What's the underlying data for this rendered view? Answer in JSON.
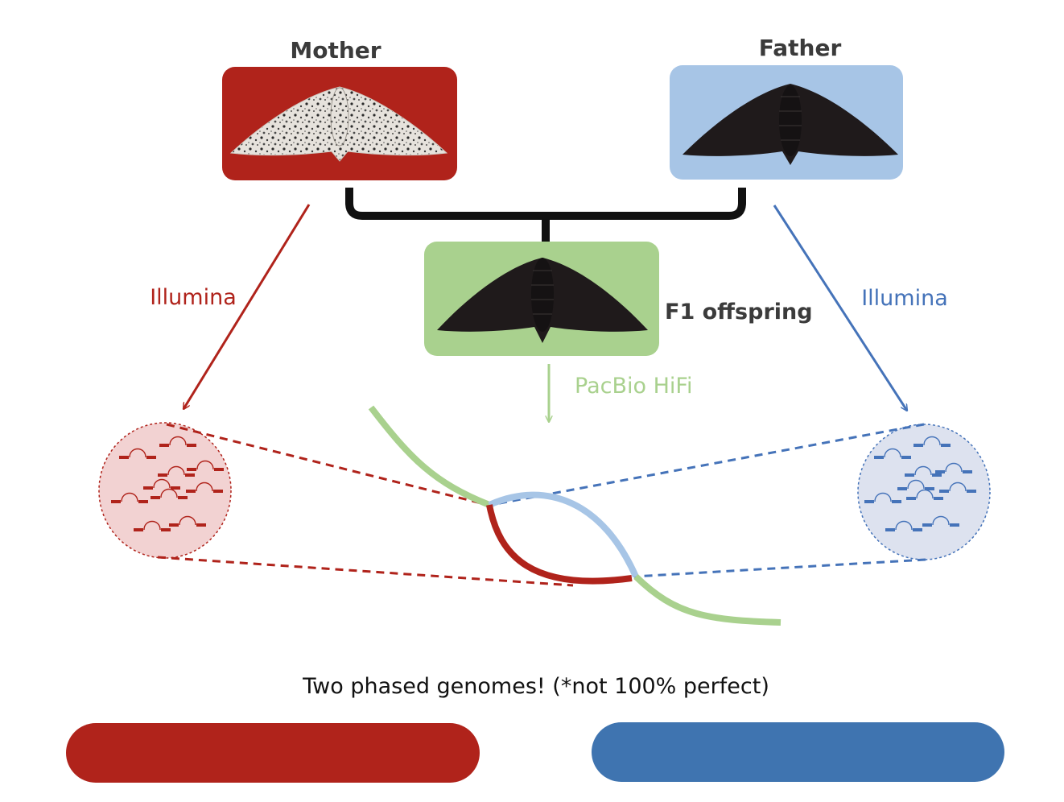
{
  "parents": {
    "mother_label": "Mother",
    "father_label": "Father"
  },
  "offspring": {
    "label": "F1 offspring"
  },
  "sequencing": {
    "mother_tech": "Illumina",
    "father_tech": "Illumina",
    "offspring_tech": "PacBio HiFi"
  },
  "result": {
    "caption": "Two phased genomes! (*not 100% perfect)"
  },
  "colors": {
    "maternal": "#b0231b",
    "maternal_light": "#f2d2d2",
    "paternal": "#4573b9",
    "paternal_light": "#a7c5e6",
    "paternal_circle": "#dde2ef",
    "offspring": "#a9d18e",
    "pedigree": "#111111",
    "label_dark": "#3b3b3b",
    "genome_bar_paternal": "#3f74b0"
  },
  "icons": {
    "mother_image": "peppered-moth-light-form",
    "father_image": "peppered-moth-dark-form",
    "offspring_image": "peppered-moth-dark-form",
    "reads": "paired-read-glyph"
  }
}
